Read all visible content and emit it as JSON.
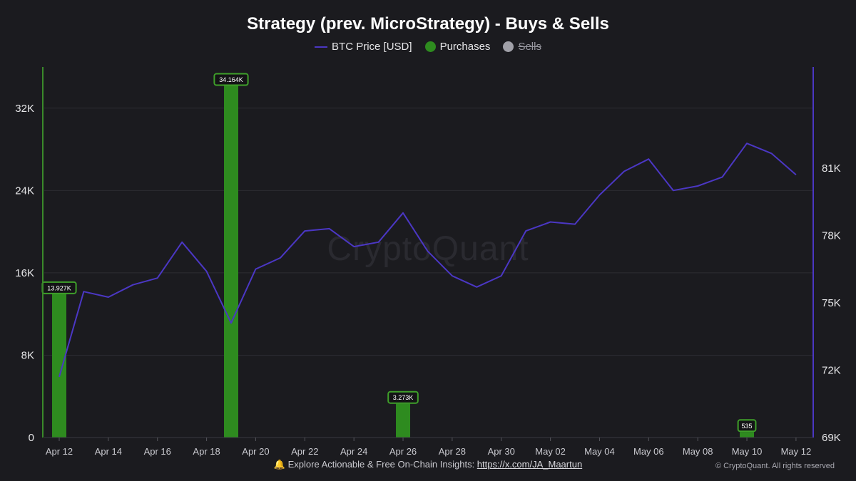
{
  "title": "Strategy (prev. MicroStrategy) - Buys & Sells",
  "legend": [
    {
      "label": "BTC Price [USD]",
      "color": "#4b37c4",
      "kind": "line",
      "hidden": false
    },
    {
      "label": "Purchases",
      "color": "#2e8b1f",
      "kind": "dot",
      "hidden": false
    },
    {
      "label": "Sells",
      "color": "#a0a0a8",
      "kind": "dot",
      "hidden": true
    }
  ],
  "watermark": "CryptoQuant",
  "footer": {
    "icon": "bell-icon",
    "text": "🔔 Explore Actionable & Free On-Chain Insights: ",
    "link": "https://x.com/JA_Maartun"
  },
  "copyright": "© CryptoQuant. All rights reserved",
  "colors": {
    "price_line": "#4b37c4",
    "purchases": "#2e8b1f",
    "purchase_label_border": "#3fa02a",
    "left_axis_line": "#3a8a2a",
    "right_axis_line": "#4b37c4",
    "grid": "#2c2c32",
    "background": "#1b1b1f"
  },
  "chart_data": {
    "type": "bar+line",
    "x": [
      "Apr 12",
      "Apr 13",
      "Apr 14",
      "Apr 15",
      "Apr 16",
      "Apr 17",
      "Apr 18",
      "Apr 19",
      "Apr 20",
      "Apr 21",
      "Apr 22",
      "Apr 23",
      "Apr 24",
      "Apr 25",
      "Apr 26",
      "Apr 27",
      "Apr 28",
      "Apr 29",
      "Apr 30",
      "May 01",
      "May 02",
      "May 03",
      "May 04",
      "May 05",
      "May 06",
      "May 07",
      "May 08",
      "May 09",
      "May 10",
      "May 11",
      "May 12"
    ],
    "x_tick_labels": [
      "Apr 12",
      "Apr 14",
      "Apr 16",
      "Apr 18",
      "Apr 20",
      "Apr 22",
      "Apr 24",
      "Apr 26",
      "Apr 28",
      "Apr 30",
      "May 02",
      "May 04",
      "May 06",
      "May 08",
      "May 10",
      "May 12"
    ],
    "left_axis": {
      "ylim": [
        0,
        36000
      ],
      "ticks": [
        0,
        8000,
        16000,
        24000,
        32000
      ],
      "tick_labels": [
        "0",
        "8K",
        "16K",
        "24K",
        "32K"
      ]
    },
    "right_axis": {
      "ylim": [
        69000,
        85500
      ],
      "ticks": [
        69000,
        72000,
        75000,
        78000,
        81000
      ],
      "tick_labels": [
        "69K",
        "72K",
        "75K",
        "78K",
        "81K"
      ]
    },
    "series": [
      {
        "name": "BTC Price [USD]",
        "type": "line",
        "axis": "right",
        "values": [
          71700,
          75500,
          75250,
          75800,
          76100,
          77700,
          76400,
          74100,
          76500,
          77000,
          78200,
          78300,
          77500,
          77700,
          79000,
          77300,
          76200,
          75700,
          76200,
          78200,
          78600,
          78500,
          79800,
          80850,
          81400,
          80000,
          80200,
          80600,
          82100,
          81650,
          80700
        ]
      },
      {
        "name": "Purchases",
        "type": "bar",
        "axis": "left",
        "points": [
          {
            "x": "Apr 12",
            "value": 13927,
            "label": "13.927K"
          },
          {
            "x": "Apr 19",
            "value": 34164,
            "label": "34.164K"
          },
          {
            "x": "Apr 26",
            "value": 3273,
            "label": "3.273K"
          },
          {
            "x": "May 10",
            "value": 535,
            "label": "535"
          }
        ]
      },
      {
        "name": "Sells",
        "type": "bar",
        "axis": "left",
        "points": []
      }
    ]
  }
}
